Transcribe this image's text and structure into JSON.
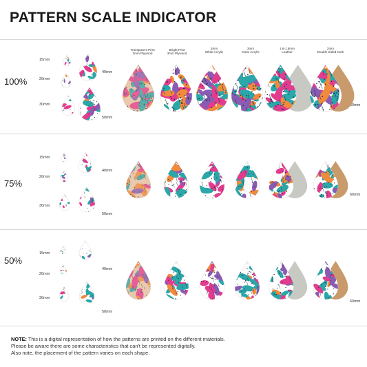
{
  "title": "PATTERN SCALE INDICATOR",
  "sections": [
    {
      "percent": "100%"
    },
    {
      "percent": "75%"
    },
    {
      "percent": "50%"
    }
  ],
  "sizes": {
    "s15": "15mm",
    "s20": "20mm",
    "s30": "30mm",
    "s40": "40mm",
    "s50": "50mm",
    "s60": "60mm"
  },
  "materials": [
    {
      "line1": "Transparent Print",
      "line2": "3mm Plywood"
    },
    {
      "line1": "Bright Print",
      "line2": "3mm Plywood"
    },
    {
      "line1": "3mm",
      "line2": "White Acrylic"
    },
    {
      "line1": "3mm",
      "line2": "Clear Acrylic"
    },
    {
      "line1": "1.6-1.8mm",
      "line2": "Leather"
    },
    {
      "line1": "2mm",
      "line2": "Double Sided Cork"
    }
  ],
  "note": {
    "label": "NOTE:",
    "line1": "This is a digital representation of how the patterns are printed on the different materials.",
    "line2": "Please be aware there are some characteristics that can't be represented digitally.",
    "line3": "Also note, the placement of the pattern varies on each shape."
  },
  "colors": {
    "pink": "#e23c8f",
    "teal": "#2aa7a9",
    "orange": "#f08a3c",
    "purple": "#8a5bb3",
    "navy": "#253247",
    "cork": "#c99a6b",
    "leather": "#c9c9c4",
    "plywood": "#e9c9ad"
  }
}
